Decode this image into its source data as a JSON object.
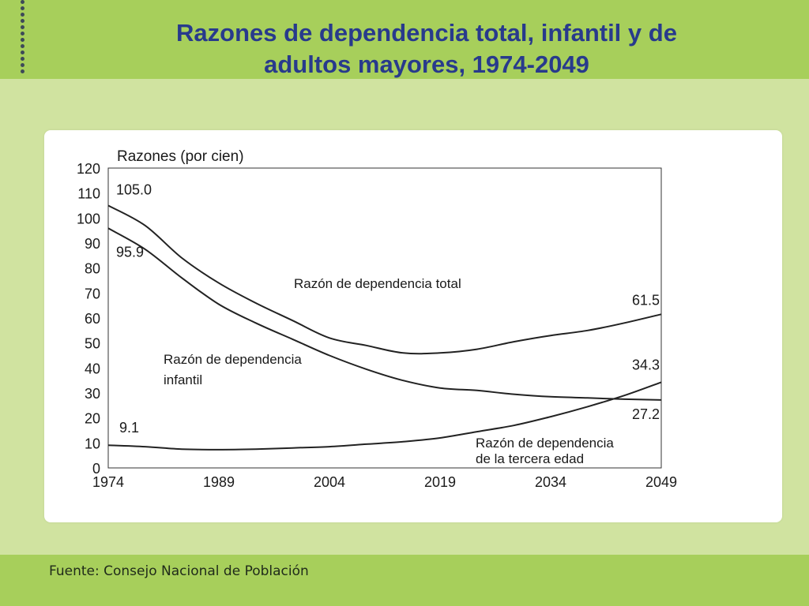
{
  "slide": {
    "title_line1": "Razones de dependencia total, infantil y de",
    "title_line2": "adultos mayores, 1974-2049",
    "source": "Fuente: Consejo Nacional de Población"
  },
  "colors": {
    "header_green": "#a7cf5b",
    "panel_green": "#d0e3a0",
    "title_blue": "#283a8c",
    "line": "#222222"
  },
  "chart_data": {
    "type": "line",
    "ylabel": "Razones (por cien)",
    "xlabel": "",
    "x": [
      1974,
      1979,
      1984,
      1989,
      1994,
      1999,
      2004,
      2009,
      2014,
      2019,
      2024,
      2029,
      2034,
      2039,
      2044,
      2049
    ],
    "x_ticks": [
      "1974",
      "1989",
      "2004",
      "2019",
      "2034",
      "2049"
    ],
    "y_ticks": [
      "0",
      "10",
      "20",
      "30",
      "40",
      "50",
      "60",
      "70",
      "80",
      "90",
      "100",
      "110",
      "120"
    ],
    "ylim": [
      0,
      120
    ],
    "xlim": [
      1974,
      2049
    ],
    "grid": false,
    "series": [
      {
        "name": "Razón de dependencia total",
        "values": [
          105.0,
          97.0,
          84.0,
          74.0,
          66.0,
          59.0,
          52.0,
          49.0,
          46.0,
          46.0,
          47.5,
          50.5,
          53.0,
          55.0,
          58.0,
          61.5
        ]
      },
      {
        "name": "Razón de dependencia infantil",
        "values": [
          95.9,
          87.5,
          76.0,
          65.5,
          58.0,
          51.5,
          45.0,
          39.5,
          35.0,
          32.0,
          31.0,
          29.5,
          28.5,
          28.0,
          27.5,
          27.2
        ]
      },
      {
        "name": "Razón de dependencia de la tercera edad",
        "values": [
          9.1,
          8.5,
          7.5,
          7.3,
          7.5,
          8.0,
          8.5,
          9.5,
          10.5,
          12.0,
          14.5,
          17.0,
          20.5,
          24.5,
          29.0,
          34.3
        ]
      }
    ],
    "data_labels": [
      {
        "text": "105.0",
        "series": 0,
        "at": 1974
      },
      {
        "text": "95.9",
        "series": 1,
        "at": 1974
      },
      {
        "text": "9.1",
        "series": 2,
        "at": 1974
      },
      {
        "text": "61.5",
        "series": 0,
        "at": 2049
      },
      {
        "text": "34.3",
        "series": 2,
        "at": 2049
      },
      {
        "text": "27.2",
        "series": 1,
        "at": 2049
      }
    ],
    "annotations": {
      "total": "Razón de dependencia total",
      "infantil_line1": "Razón de dependencia",
      "infantil_line2": "infantil",
      "tercera_line1": "Razón de dependencia",
      "tercera_line2": "de la tercera edad"
    }
  }
}
